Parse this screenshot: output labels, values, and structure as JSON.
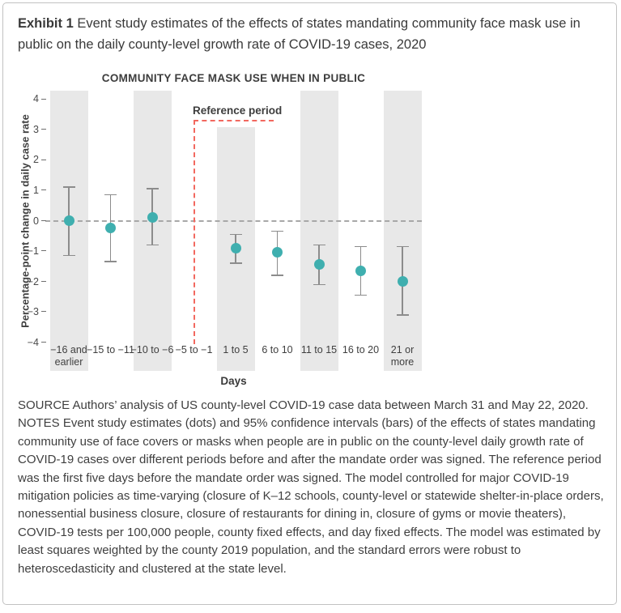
{
  "page": {
    "title_bold": "Exhibit 1",
    "title_rest": " Event study estimates of the effects of states mandating community face mask use in public on the daily county-level growth rate of COVID-19 cases, 2020",
    "notes": "SOURCE Authors’ analysis of US county-level COVID-19 case data between March 31 and May 22, 2020. NOTES Event study estimates (dots) and 95% confidence intervals (bars) of the effects of states mandating community use of face covers or masks when people are in public on the county-level daily growth rate of COVID-19 cases over different periods before and after the mandate order was signed. The reference period was the first five days before the mandate order was signed. The model controlled for major COVID-19 mitigation policies as time-varying (closure of K–12 schools, county-level or statewide shelter-in-place orders, nonessential business closure, closure of restaurants for dining in, closure of gyms or movie theaters), COVID-19 tests per 100,000 people, county fixed effects, and day fixed effects. The model was estimated by least squares weighted by the county 2019 population, and the standard errors were robust to heteroscedasticity and clustered at the state level."
  },
  "chart_data": {
    "type": "scatter",
    "title": "COMMUNITY FACE MASK USE WHEN IN PUBLIC",
    "xlabel": "Days",
    "ylabel": "Percentage-point change in daily case rate",
    "ylim": [
      -4.25,
      4.25
    ],
    "yticks": [
      4,
      3,
      2,
      1,
      0,
      -1,
      -2,
      -3,
      -4
    ],
    "zero_reference_line": 0,
    "grid": false,
    "legend": "none",
    "reference_period": {
      "label": "Reference period",
      "category": "−5 to −1",
      "note": "no estimate plotted; marked with dashed red bracket"
    },
    "categories": [
      "−16 and earlier",
      "−15 to −11",
      "−10 to −6",
      "−5 to −1",
      "1 to 5",
      "6 to 10",
      "11 to 15",
      "16 to 20",
      "21 or more"
    ],
    "series": [
      {
        "name": "Event study estimates (dots) with 95% confidence intervals (bars)",
        "points": [
          {
            "category": "−16 and earlier",
            "label": "−16 and\nearlier",
            "estimate": 0.0,
            "ci_low": -1.15,
            "ci_high": 1.1,
            "shaded": true,
            "reference": false
          },
          {
            "category": "−15 to −11",
            "label": "−15 to −11",
            "estimate": -0.25,
            "ci_low": -1.35,
            "ci_high": 0.85,
            "shaded": false,
            "reference": false
          },
          {
            "category": "−10 to −6",
            "label": "−10 to −6",
            "estimate": 0.1,
            "ci_low": -0.8,
            "ci_high": 1.05,
            "shaded": true,
            "reference": false
          },
          {
            "category": "−5 to −1",
            "label": "−5 to −1",
            "estimate": null,
            "ci_low": null,
            "ci_high": null,
            "shaded": false,
            "reference": true
          },
          {
            "category": "1 to 5",
            "label": "1 to 5",
            "estimate": -0.9,
            "ci_low": -1.4,
            "ci_high": -0.45,
            "shaded": true,
            "reference": false
          },
          {
            "category": "6 to 10",
            "label": "6 to 10",
            "estimate": -1.05,
            "ci_low": -1.8,
            "ci_high": -0.35,
            "shaded": false,
            "reference": false
          },
          {
            "category": "11 to 15",
            "label": "11 to 15",
            "estimate": -1.45,
            "ci_low": -2.1,
            "ci_high": -0.8,
            "shaded": true,
            "reference": false
          },
          {
            "category": "16 to 20",
            "label": "16 to 20",
            "estimate": -1.65,
            "ci_low": -2.45,
            "ci_high": -0.85,
            "shaded": false,
            "reference": false
          },
          {
            "category": "21 or more",
            "label": "21 or\nmore",
            "estimate": -2.0,
            "ci_low": -3.1,
            "ci_high": -0.85,
            "shaded": true,
            "reference": false
          }
        ]
      }
    ],
    "colors": {
      "dot": "#3fafaf",
      "error_bar": "#8c8c8c",
      "shaded_band": "#e8e8e8",
      "zero_line": "#a8a8a8",
      "reference_line": "#f2685f"
    }
  }
}
